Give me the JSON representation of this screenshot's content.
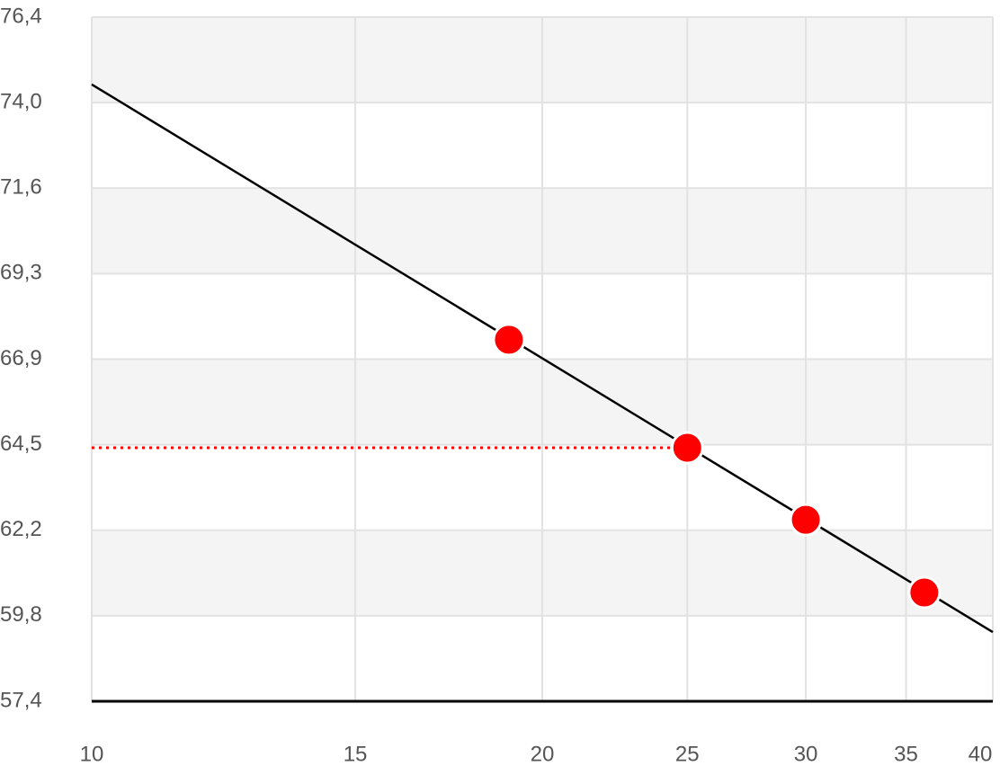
{
  "chart_data": {
    "type": "line",
    "xscale": "log",
    "xlim": [
      10,
      40
    ],
    "xticks": [
      10,
      15,
      20,
      25,
      30,
      35,
      40
    ],
    "ylim": [
      57.4,
      76.4
    ],
    "yticks": [
      {
        "value": 57.4,
        "label": "57,4"
      },
      {
        "value": 59.775,
        "label": "59,8"
      },
      {
        "value": 62.15,
        "label": "62,2"
      },
      {
        "value": 64.525,
        "label": "64,5"
      },
      {
        "value": 66.9,
        "label": "66,9"
      },
      {
        "value": 69.275,
        "label": "69,3"
      },
      {
        "value": 71.65,
        "label": "71,6"
      },
      {
        "value": 74.025,
        "label": "74,0"
      },
      {
        "value": 76.4,
        "label": "76,4"
      }
    ],
    "grid": true,
    "bands": true,
    "series": [
      {
        "kind": "line",
        "color": "#000000",
        "x": [
          10,
          40
        ],
        "values": [
          74.53,
          59.32
        ]
      },
      {
        "kind": "points",
        "color": "#ff0000",
        "x": [
          19,
          25,
          30,
          36
        ],
        "values": [
          67.44,
          64.44,
          62.44,
          60.42
        ]
      }
    ],
    "reference": {
      "series": 1,
      "point": 1,
      "color": "#ff0000"
    }
  }
}
